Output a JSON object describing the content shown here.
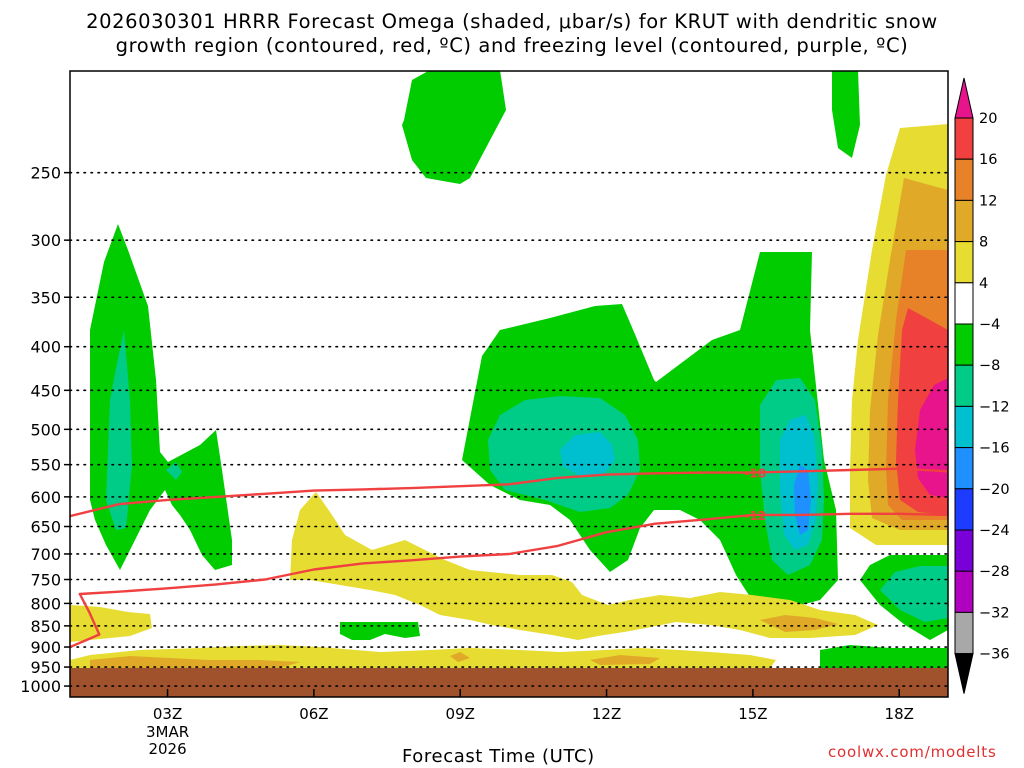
{
  "title": {
    "line1": "2026030301 HRRR Forecast Omega (shaded, μbar/s) for KRUT with dendritic snow",
    "line2": "growth region (contoured, red, ºC) and freezing level (contoured, purple, ºC)"
  },
  "credit": "coolwx.com/modelts",
  "colors": {
    "green": "#00cc00",
    "teal": "#00cc88",
    "cyan": "#00c0d0",
    "blue": "#1e90ff",
    "yellow": "#e6dc32",
    "gold": "#e0aa28",
    "orange": "#e88228",
    "red": "#f04040",
    "magenta": "#e8148c",
    "ground": "#a0522d",
    "contour": "#f04040"
  },
  "chart_data": {
    "type": "heatmap",
    "title": "2026030301 HRRR Forecast Omega (shaded, μbar/s) for KRUT with dendritic snow growth region (contoured, red, ºC) and freezing level (contoured, purple, ºC)",
    "xlabel": "Forecast Time (UTC)",
    "ylabel": "",
    "x_axis": {
      "unit": "hours since 2026-03-03 01Z",
      "range": [
        0,
        18
      ],
      "ticks": [
        {
          "value": 2,
          "label": "03Z",
          "sub": [
            "3MAR",
            "2026"
          ]
        },
        {
          "value": 5,
          "label": "06Z",
          "sub": []
        },
        {
          "value": 8,
          "label": "09Z",
          "sub": []
        },
        {
          "value": 11,
          "label": "12Z",
          "sub": []
        },
        {
          "value": 14,
          "label": "15Z",
          "sub": []
        },
        {
          "value": 17,
          "label": "18Z",
          "sub": []
        }
      ]
    },
    "y_axis": {
      "unit": "hPa",
      "scale": "log",
      "inverted": true,
      "range": [
        1030,
        190
      ],
      "ticks": [
        250,
        300,
        350,
        400,
        450,
        500,
        550,
        600,
        650,
        700,
        750,
        800,
        850,
        900,
        950,
        1000
      ],
      "grid": "dotted"
    },
    "colorbar": {
      "labels": [
        "20",
        "16",
        "12",
        "8",
        "4",
        "−4",
        "−8",
        "−12",
        "−16",
        "−20",
        "−24",
        "−28",
        "−32",
        "−36"
      ],
      "colors": [
        "#e8148c",
        "#f04040",
        "#e88228",
        "#e0aa28",
        "#e6dc32",
        "#ffffff",
        "#00cc00",
        "#00cc88",
        "#00c0d0",
        "#1e90ff",
        "#1e3cff",
        "#7a00d8",
        "#b000c0",
        "#a8a8a8",
        "#000000"
      ]
    },
    "contours": [
      {
        "label": "-18",
        "color": "#f04040",
        "points": [
          [
            0,
            632
          ],
          [
            1,
            612
          ],
          [
            2,
            605
          ],
          [
            3,
            600
          ],
          [
            4,
            595
          ],
          [
            5,
            590
          ],
          [
            6,
            588
          ],
          [
            7,
            586
          ],
          [
            8,
            583
          ],
          [
            9,
            580
          ],
          [
            10,
            570
          ],
          [
            11,
            565
          ],
          [
            12,
            563
          ],
          [
            13,
            562
          ],
          [
            14,
            562
          ],
          [
            15,
            560
          ],
          [
            16,
            558
          ],
          [
            17,
            556
          ],
          [
            18,
            560
          ]
        ]
      },
      {
        "label": "-12",
        "color": "#f04040",
        "points": [
          [
            0,
            900
          ],
          [
            0.6,
            870
          ],
          [
            0.4,
            820
          ],
          [
            0.2,
            780
          ],
          [
            1,
            775
          ],
          [
            2,
            768
          ],
          [
            3,
            760
          ],
          [
            4,
            750
          ],
          [
            5,
            730
          ],
          [
            6,
            718
          ],
          [
            7,
            712
          ],
          [
            8,
            705
          ],
          [
            9,
            700
          ],
          [
            10,
            685
          ],
          [
            11,
            660
          ],
          [
            12,
            645
          ],
          [
            13,
            638
          ],
          [
            14,
            630
          ],
          [
            15,
            630
          ],
          [
            16,
            628
          ],
          [
            17,
            628
          ],
          [
            18,
            630
          ]
        ]
      }
    ]
  }
}
